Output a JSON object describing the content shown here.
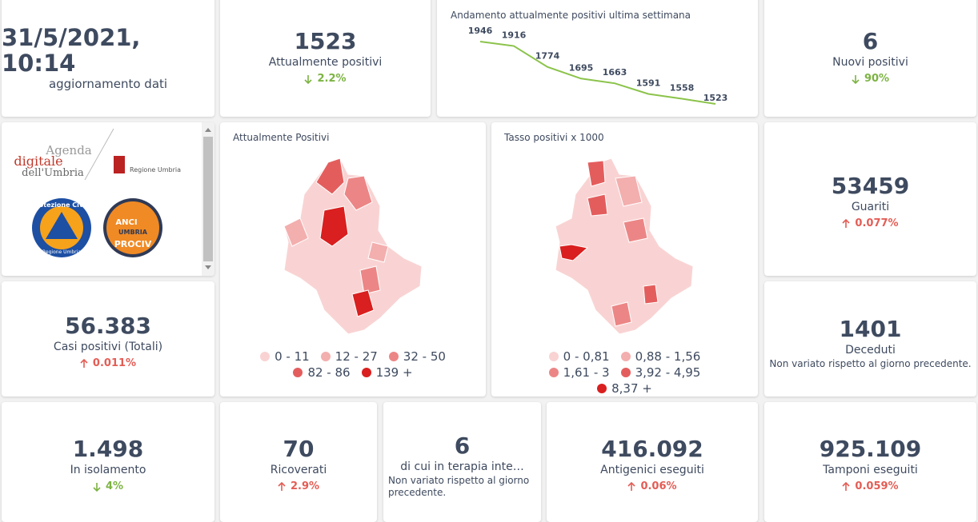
{
  "update": {
    "value": "31/5/2021, 10:14",
    "label": "aggiornamento dati"
  },
  "cards": [
    {
      "value": "1523",
      "label": "Attualmente positivi",
      "change": "2.2%",
      "trend": "down"
    },
    {
      "value": "6",
      "label": "Nuovi positivi",
      "change": "90%",
      "trend": "down"
    },
    {
      "value": "53459",
      "label": "Guariti",
      "change": "0.077%",
      "trend": "up"
    },
    {
      "value": "56.383",
      "label": "Casi positivi (Totali)",
      "change": "0.011%",
      "trend": "up"
    },
    {
      "value": "1401",
      "label": "Deceduti",
      "note": "Non variato rispetto al giorno precedente."
    },
    {
      "value": "1.498",
      "label": "In isolamento",
      "change": "4%",
      "trend": "down"
    },
    {
      "value": "70",
      "label": "Ricoverati",
      "change": "2.9%",
      "trend": "up"
    },
    {
      "value": "6",
      "label": "di cui in terapia inte…",
      "note": "Non variato rispetto al giorno precedente."
    },
    {
      "value": "416.092",
      "label": "Antigenici eseguiti",
      "change": "0.06%",
      "trend": "up"
    },
    {
      "value": "925.109",
      "label": "Tamponi eseguiti",
      "change": "0.059%",
      "trend": "up"
    }
  ],
  "chart_data": {
    "type": "line",
    "title": "Andamento attualmente positivi ultima settimana",
    "values": [
      1946,
      1916,
      1774,
      1695,
      1663,
      1591,
      1558,
      1523
    ],
    "color": "#8bc34a"
  },
  "logos": {
    "agenda": [
      "Agenda",
      "digitale",
      "dell'Umbria"
    ],
    "regione": "Regione Umbria",
    "protezione": [
      "Protezione Civile",
      "Regione Umbria"
    ],
    "anci": [
      "ANCI",
      "UMBRIA",
      "PROCIV"
    ]
  },
  "maps": [
    {
      "title": "Attualmente Positivi",
      "legend": [
        {
          "label": "0 - 11",
          "color": "#f9d3d3"
        },
        {
          "label": "12 - 27",
          "color": "#f3aeae"
        },
        {
          "label": "32 - 50",
          "color": "#ec8686"
        },
        {
          "label": "82 - 86",
          "color": "#e45d5d"
        },
        {
          "label": "139 +",
          "color": "#d91f1f"
        }
      ]
    },
    {
      "title": "Tasso positivi x 1000",
      "legend": [
        {
          "label": "0 - 0,81",
          "color": "#f9d3d3"
        },
        {
          "label": "0,88 - 1,56",
          "color": "#f3aeae"
        },
        {
          "label": "1,61 - 3",
          "color": "#ec8686"
        },
        {
          "label": "3,92 - 4,95",
          "color": "#e45d5d"
        },
        {
          "label": "8,37 +",
          "color": "#d91f1f"
        }
      ]
    }
  ]
}
